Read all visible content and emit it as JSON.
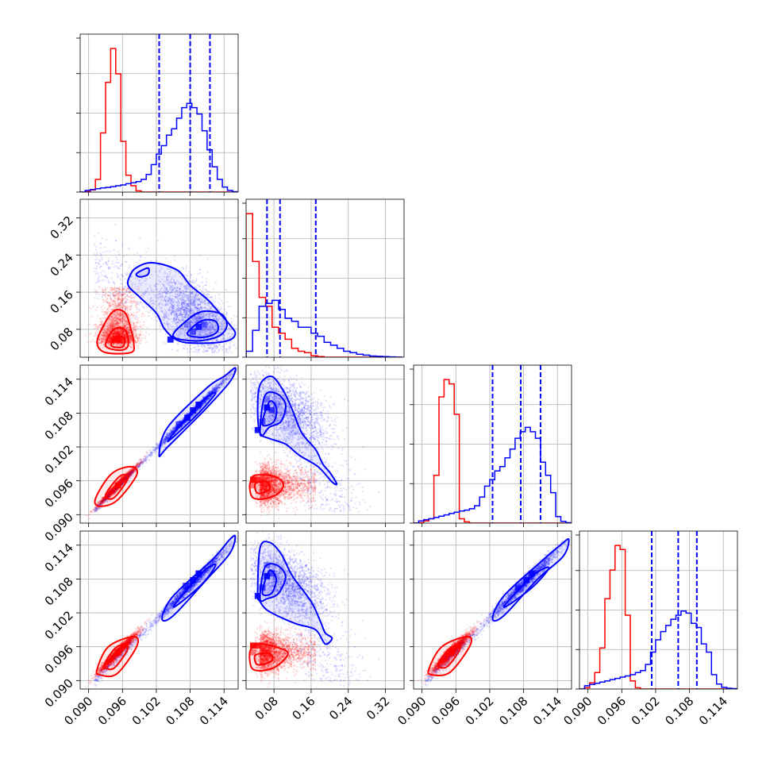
{
  "chart_data": {
    "type": "corner",
    "title": "",
    "grid": true,
    "parameters": [
      {
        "index": 0,
        "range": [
          0.0885,
          0.1165
        ],
        "ticks": [
          "0.090",
          "0.096",
          "0.102",
          "0.108",
          "0.114"
        ]
      },
      {
        "index": 1,
        "range": [
          0.02,
          0.36
        ],
        "ticks": [
          "0.08",
          "0.16",
          "0.24",
          "0.32"
        ]
      },
      {
        "index": 2,
        "range": [
          0.0885,
          0.1165
        ],
        "ticks": [
          "0.090",
          "0.096",
          "0.102",
          "0.108",
          "0.114"
        ]
      },
      {
        "index": 3,
        "range": [
          0.0885,
          0.1165
        ],
        "ticks": [
          "0.090",
          "0.096",
          "0.102",
          "0.108",
          "0.114"
        ]
      }
    ],
    "series": [
      {
        "color": "#ff0000",
        "means": [
          0.0952,
          0.055,
          0.0952,
          0.095
        ],
        "sds": [
          0.0015,
          0.028,
          0.0015,
          0.0016
        ],
        "quantiles": [
          [],
          [],
          [],
          []
        ]
      },
      {
        "color": "#0000ff",
        "means": [
          0.1075,
          0.12,
          0.107,
          0.106
        ],
        "sds": [
          0.0045,
          0.055,
          0.0045,
          0.0045
        ],
        "quantiles": [
          [
            0.1025,
            0.108,
            0.1115
          ],
          [
            0.065,
            0.093,
            0.17
          ],
          [
            0.1025,
            0.1075,
            0.111
          ],
          [
            0.1013,
            0.106,
            0.1093
          ]
        ]
      }
    ],
    "histograms": [
      {
        "param": 0,
        "bins_start": 0.0885,
        "bin_width": 0.0009,
        "red": [
          0,
          0.1,
          0.5,
          3,
          14,
          26,
          34,
          28,
          12,
          4,
          1.5,
          0.3,
          0,
          0,
          0,
          0,
          0,
          0,
          0,
          0,
          0,
          0,
          0,
          0,
          0,
          0,
          0,
          0,
          0,
          0,
          0
        ],
        "blue": [
          0,
          0.4,
          0.6,
          0.8,
          1,
          1.1,
          1.3,
          1.5,
          1.7,
          2,
          2.2,
          2.5,
          3,
          4.2,
          6.5,
          9,
          11,
          13.5,
          15,
          17.5,
          20,
          21,
          20,
          18.5,
          14.5,
          10,
          6,
          3,
          1.2,
          0.4,
          0.1
        ]
      },
      {
        "param": 1,
        "bins_start": 0.02,
        "bin_width": 0.014,
        "red": [
          48,
          32,
          20,
          17,
          10,
          8,
          6,
          3,
          2,
          1.5,
          0.5,
          0.2,
          0,
          0,
          0,
          0,
          0,
          0,
          0,
          0,
          0,
          0,
          0,
          0
        ],
        "blue": [
          2,
          9,
          17,
          18,
          19,
          16,
          13,
          12,
          10,
          10,
          8,
          7,
          5,
          4,
          3,
          2,
          1.5,
          1,
          0.7,
          0.4,
          0.3,
          0.2,
          0.1,
          0
        ]
      },
      {
        "param": 2,
        "bins_start": 0.0885,
        "bin_width": 0.0009,
        "red": [
          0,
          0.1,
          0.5,
          1,
          11,
          29,
          33,
          32,
          25,
          1,
          0.3,
          0,
          0,
          0,
          0,
          0,
          0,
          0,
          0,
          0,
          0,
          0,
          0,
          0,
          0,
          0,
          0,
          0,
          0,
          0,
          0
        ],
        "blue": [
          0,
          0.5,
          0.8,
          1,
          1.3,
          1.6,
          1.9,
          2.2,
          2.5,
          2.8,
          3,
          3.3,
          4,
          6,
          8.5,
          10,
          12,
          13,
          15,
          17,
          19.5,
          21,
          22,
          21,
          19.5,
          14,
          11,
          7,
          1.5,
          0.4,
          0.1
        ]
      },
      {
        "param": 3,
        "bins_start": 0.0885,
        "bin_width": 0.0009,
        "red": [
          0,
          0.3,
          1.5,
          4,
          10,
          22,
          29,
          35,
          34,
          18,
          2,
          0.3,
          0,
          0,
          0,
          0,
          0,
          0,
          0,
          0,
          0,
          0,
          0,
          0,
          0,
          0,
          0,
          0,
          0,
          0,
          0
        ],
        "blue": [
          0,
          0.8,
          1.1,
          1.4,
          1.7,
          2,
          2.3,
          2.6,
          2.9,
          3.2,
          3.5,
          4,
          4.5,
          6,
          9,
          12,
          14,
          15.5,
          17,
          18,
          19,
          18.5,
          16,
          15,
          11,
          9,
          3.5,
          1.2,
          0.4,
          0.2,
          0.1
        ]
      }
    ]
  }
}
